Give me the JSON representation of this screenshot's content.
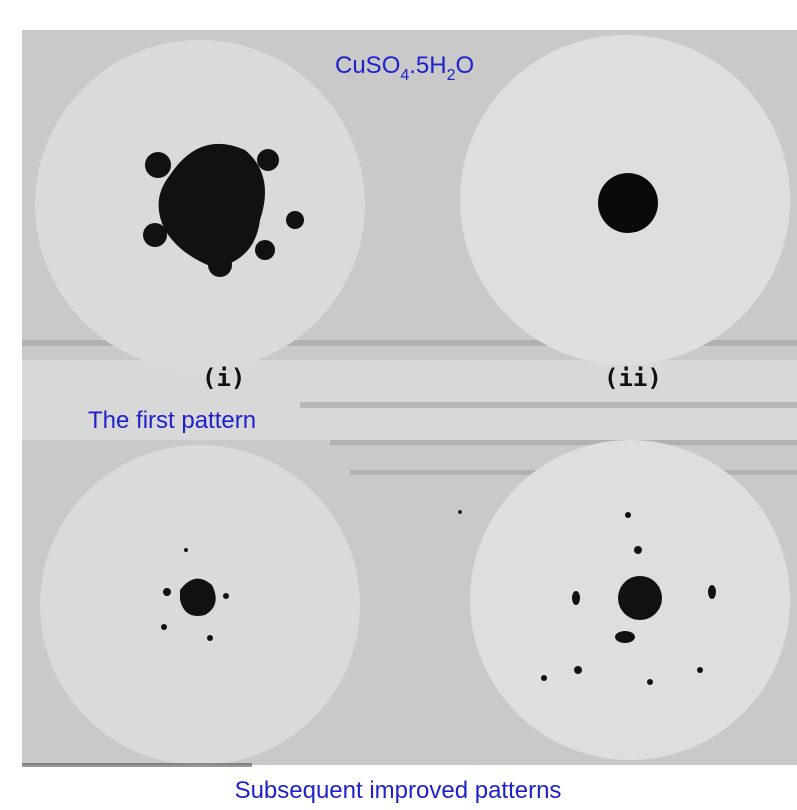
{
  "annotations": {
    "formula": [
      "CuSO",
      "4",
      ".5H",
      "2",
      "O"
    ],
    "panel_labels": [
      "(i)",
      "(ii)"
    ],
    "first_caption": "The first pattern",
    "bottom_caption": "Subsequent improved patterns"
  }
}
